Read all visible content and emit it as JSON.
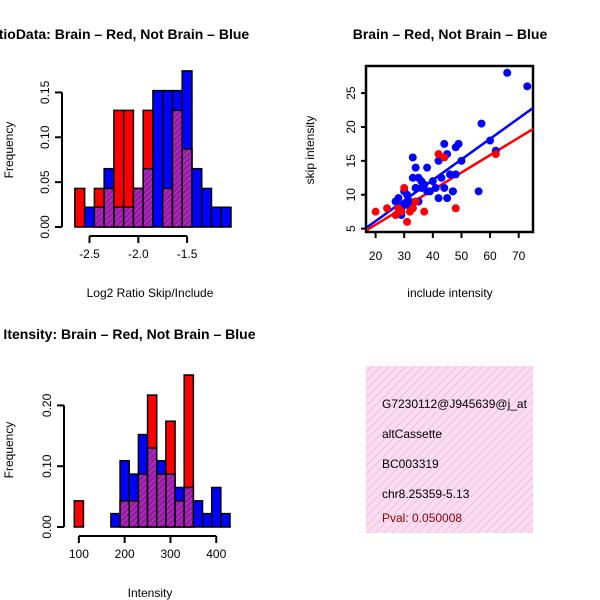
{
  "colors": {
    "red": "#ff0000",
    "blue": "#0000ff",
    "purple": "#9a1aa8",
    "text_red": "#8b0000",
    "info_bg": "#f9dcef",
    "info_hatch": "#ee9fcf"
  },
  "chart_data": [
    {
      "type": "bar",
      "subtype": "overlaid-histogram",
      "title": "RatioData: Brain – Red, Not Brain – Blue",
      "xlabel": "Log2 Ratio Skip/Include",
      "ylabel": "Frequency",
      "xlim": [
        -2.7,
        -1.05
      ],
      "ylim": [
        0,
        0.175
      ],
      "xticks": [
        -2.5,
        -2.0,
        -1.5
      ],
      "xtick_labels": [
        "-2.5",
        "-2.0",
        "-1.5"
      ],
      "yticks": [
        0.0,
        0.05,
        0.1,
        0.15
      ],
      "ytick_labels": [
        "0.00",
        "0.05",
        "0.10",
        "0.15"
      ],
      "bin_width": 0.1,
      "bin_starts": [
        -2.65,
        -2.55,
        -2.45,
        -2.35,
        -2.25,
        -2.15,
        -2.05,
        -1.95,
        -1.85,
        -1.75,
        -1.65,
        -1.55,
        -1.45,
        -1.35,
        -1.25,
        -1.15
      ],
      "series": [
        {
          "name": "Brain",
          "color": "red",
          "values": [
            0.043,
            0.0,
            0.043,
            0.043,
            0.13,
            0.13,
            0.043,
            0.13,
            0.0,
            0.043,
            0.13,
            0.087,
            0.0,
            0.0,
            0.0,
            0.0
          ]
        },
        {
          "name": "Not Brain",
          "color": "blue",
          "values": [
            0.0,
            0.022,
            0.022,
            0.065,
            0.022,
            0.022,
            0.043,
            0.065,
            0.152,
            0.152,
            0.152,
            0.174,
            0.065,
            0.043,
            0.022,
            0.022
          ]
        }
      ]
    },
    {
      "type": "scatter",
      "title": "Brain – Red, Not Brain – Blue",
      "xlabel": "include intensity",
      "ylabel": "skip intensity",
      "xlim": [
        17,
        75
      ],
      "ylim": [
        4.5,
        29
      ],
      "xticks": [
        20,
        30,
        40,
        50,
        60,
        70
      ],
      "xtick_labels": [
        "20",
        "30",
        "40",
        "50",
        "60",
        "70"
      ],
      "yticks": [
        5,
        10,
        15,
        20,
        25
      ],
      "ytick_labels": [
        "5",
        "10",
        "15",
        "20",
        "25"
      ],
      "series": [
        {
          "name": "Not Brain",
          "color": "blue",
          "x": [
            66,
            73,
            57,
            60,
            56,
            62,
            48,
            49,
            44,
            42,
            38,
            33,
            34,
            35,
            45,
            50,
            48,
            43,
            40,
            41,
            44,
            46,
            47,
            37,
            38,
            36,
            33,
            34,
            31,
            30,
            32,
            28,
            27,
            29,
            31,
            33,
            35,
            39,
            42,
            45,
            47,
            36,
            34,
            30,
            29
          ],
          "y": [
            28,
            26,
            20.5,
            18,
            10.5,
            16.5,
            17,
            17.5,
            17.5,
            15,
            14,
            15.5,
            14,
            12.5,
            16,
            15,
            13,
            12.5,
            12,
            11,
            11,
            13,
            10.5,
            11.5,
            10.5,
            11,
            12.5,
            11,
            10,
            10.5,
            9,
            9.5,
            9,
            8,
            8.5,
            8,
            9,
            10.5,
            9.5,
            9.5,
            10.5,
            12,
            11,
            8.5,
            7
          ]
        },
        {
          "name": "Brain",
          "color": "red",
          "x": [
            20,
            24,
            27,
            28,
            29,
            30,
            31,
            32,
            33,
            34,
            37,
            42,
            44,
            48,
            62
          ],
          "y": [
            7.5,
            8,
            7,
            8,
            7.5,
            11,
            6,
            7.5,
            8,
            9,
            7.5,
            16,
            15.5,
            8,
            16
          ]
        }
      ],
      "fit_lines": [
        {
          "name": "Not Brain fit",
          "color": "blue",
          "x": [
            17,
            75
          ],
          "y": [
            5.2,
            22.8
          ]
        },
        {
          "name": "Brain fit",
          "color": "red",
          "x": [
            17,
            75
          ],
          "y": [
            4.8,
            19.7
          ]
        }
      ]
    },
    {
      "type": "bar",
      "subtype": "overlaid-histogram",
      "title": "Gene Itensity: Brain – Red, Not Brain – Blue",
      "xlabel": "Intensity",
      "ylabel": "Frequency",
      "xlim": [
        85,
        430
      ],
      "ylim": [
        0,
        0.25
      ],
      "xticks": [
        100,
        200,
        300,
        400
      ],
      "xtick_labels": [
        "100",
        "200",
        "300",
        "400"
      ],
      "yticks": [
        0.0,
        0.1,
        0.2
      ],
      "ytick_labels": [
        "0.00",
        "0.10",
        "0.20"
      ],
      "bin_width": 20,
      "bin_starts": [
        90,
        110,
        130,
        150,
        170,
        190,
        210,
        230,
        250,
        270,
        290,
        310,
        330,
        350,
        370,
        390,
        410
      ],
      "series": [
        {
          "name": "Brain",
          "color": "red",
          "values": [
            0.043,
            0.0,
            0.0,
            0.0,
            0.0,
            0.043,
            0.043,
            0.087,
            0.217,
            0.087,
            0.174,
            0.043,
            0.25,
            0.0,
            0.0,
            0.0,
            0.0
          ]
        },
        {
          "name": "Not Brain",
          "color": "blue",
          "values": [
            0.0,
            0.0,
            0.0,
            0.0,
            0.022,
            0.109,
            0.087,
            0.152,
            0.13,
            0.109,
            0.087,
            0.065,
            0.065,
            0.043,
            0.022,
            0.065,
            0.022
          ]
        }
      ]
    }
  ],
  "info_box": {
    "lines": [
      "G7230112@J945639@j_at",
      "altCassette",
      "BC003319",
      "chr8.25359-5.13"
    ],
    "pval": "Pval: 0.050008"
  }
}
